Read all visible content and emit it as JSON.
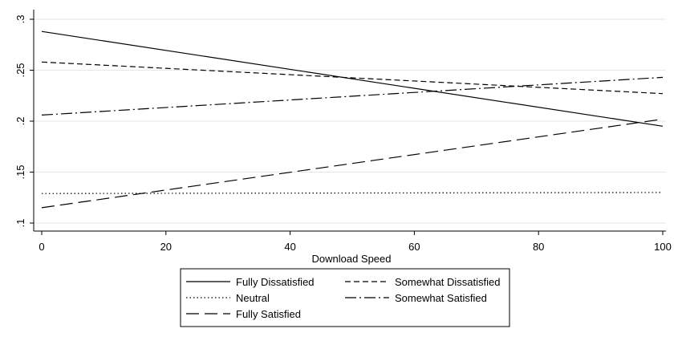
{
  "chart_data": {
    "type": "line",
    "xlabel": "Download Speed",
    "ylabel": "",
    "xlim": [
      0,
      100
    ],
    "ylim": [
      0.1,
      0.3
    ],
    "x_ticks": [
      0,
      20,
      40,
      60,
      80,
      100
    ],
    "x_tick_labels": [
      "0",
      "20",
      "40",
      "60",
      "80",
      "100"
    ],
    "y_ticks": [
      0.1,
      0.15,
      0.2,
      0.25,
      0.3
    ],
    "y_tick_labels": [
      ".1",
      ".15",
      ".2",
      ".25",
      ".3"
    ],
    "grid": true,
    "legend_position": "bottom",
    "series": [
      {
        "name": "Fully Dissatisfied",
        "dash": "solid",
        "x": [
          0,
          100
        ],
        "values": [
          0.288,
          0.195
        ]
      },
      {
        "name": "Somewhat Dissatisfied",
        "dash": "dash",
        "x": [
          0,
          100
        ],
        "values": [
          0.258,
          0.227
        ]
      },
      {
        "name": "Neutral",
        "dash": "dot",
        "x": [
          0,
          100
        ],
        "values": [
          0.129,
          0.13
        ]
      },
      {
        "name": "Somewhat Satisfied",
        "dash": "dashdot",
        "x": [
          0,
          100
        ],
        "values": [
          0.206,
          0.243
        ]
      },
      {
        "name": "Fully Satisfied",
        "dash": "longdash",
        "x": [
          0,
          100
        ],
        "values": [
          0.115,
          0.202
        ]
      }
    ]
  }
}
